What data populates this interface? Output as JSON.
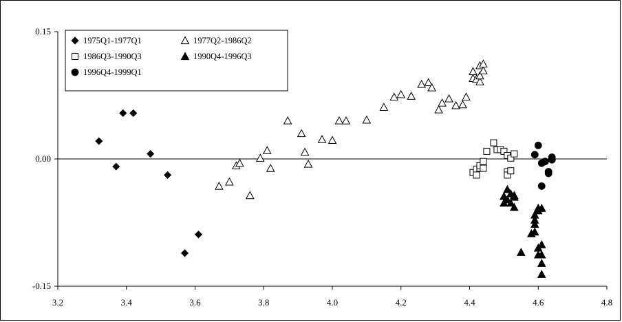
{
  "chart_data": {
    "type": "scatter",
    "xlim": [
      3.2,
      4.8
    ],
    "ylim": [
      -0.15,
      0.15
    ],
    "x_ticks": [
      3.2,
      3.4,
      3.6,
      3.8,
      4.0,
      4.2,
      4.4,
      4.6,
      4.8
    ],
    "x_tick_labels": [
      "3.2",
      "3.4",
      "3.6",
      "3.8",
      "4.0",
      "4.2",
      "4.4",
      "4.6",
      "4.8"
    ],
    "y_ticks": [
      -0.15,
      0.0,
      0.15
    ],
    "y_tick_labels": [
      "-0.15",
      "0.00",
      "0.15"
    ],
    "zero_line": true,
    "legend_position": "top-left",
    "series": [
      {
        "name": "1975Q1-1977Q1",
        "marker": "diamond-filled",
        "points": [
          [
            3.32,
            0.021
          ],
          [
            3.37,
            -0.009
          ],
          [
            3.39,
            0.054
          ],
          [
            3.42,
            0.054
          ],
          [
            3.47,
            0.006
          ],
          [
            3.52,
            -0.019
          ],
          [
            3.57,
            -0.111
          ],
          [
            3.61,
            -0.089
          ]
        ]
      },
      {
        "name": "1977Q2-1986Q2",
        "marker": "triangle-open",
        "points": [
          [
            3.67,
            -0.032
          ],
          [
            3.7,
            -0.027
          ],
          [
            3.72,
            -0.008
          ],
          [
            3.73,
            -0.005
          ],
          [
            3.76,
            -0.043
          ],
          [
            3.79,
            0.001
          ],
          [
            3.81,
            0.01
          ],
          [
            3.82,
            -0.011
          ],
          [
            3.87,
            0.045
          ],
          [
            3.91,
            0.03
          ],
          [
            3.92,
            0.008
          ],
          [
            3.93,
            -0.006
          ],
          [
            3.97,
            0.023
          ],
          [
            4.0,
            0.022
          ],
          [
            4.02,
            0.045
          ],
          [
            4.04,
            0.045
          ],
          [
            4.1,
            0.046
          ],
          [
            4.15,
            0.061
          ],
          [
            4.18,
            0.073
          ],
          [
            4.2,
            0.076
          ],
          [
            4.23,
            0.074
          ],
          [
            4.26,
            0.088
          ],
          [
            4.28,
            0.09
          ],
          [
            4.29,
            0.084
          ],
          [
            4.31,
            0.058
          ],
          [
            4.32,
            0.066
          ],
          [
            4.34,
            0.071
          ],
          [
            4.36,
            0.063
          ],
          [
            4.38,
            0.064
          ],
          [
            4.39,
            0.073
          ],
          [
            4.41,
            0.095
          ],
          [
            4.41,
            0.103
          ],
          [
            4.42,
            0.094
          ],
          [
            4.43,
            0.091
          ],
          [
            4.43,
            0.098
          ],
          [
            4.43,
            0.11
          ],
          [
            4.44,
            0.104
          ],
          [
            4.44,
            0.112
          ]
        ]
      },
      {
        "name": "1986Q3-1990Q3",
        "marker": "square-open",
        "points": [
          [
            4.41,
            -0.016
          ],
          [
            4.42,
            -0.012
          ],
          [
            4.42,
            -0.019
          ],
          [
            4.43,
            -0.011
          ],
          [
            4.43,
            -0.008
          ],
          [
            4.44,
            -0.011
          ],
          [
            4.44,
            -0.003
          ],
          [
            4.45,
            0.009
          ],
          [
            4.47,
            0.019
          ],
          [
            4.48,
            0.011
          ],
          [
            4.49,
            0.011
          ],
          [
            4.5,
            0.009
          ],
          [
            4.51,
            0.004
          ],
          [
            4.51,
            -0.015
          ],
          [
            4.51,
            -0.019
          ],
          [
            4.52,
            -0.014
          ],
          [
            4.52,
            0.001
          ],
          [
            4.53,
            0.006
          ]
        ]
      },
      {
        "name": "1990Q4-1996Q3",
        "marker": "triangle-filled",
        "points": [
          [
            4.5,
            -0.052
          ],
          [
            4.5,
            -0.044
          ],
          [
            4.51,
            -0.048
          ],
          [
            4.51,
            -0.036
          ],
          [
            4.52,
            -0.041
          ],
          [
            4.52,
            -0.052
          ],
          [
            4.53,
            -0.043
          ],
          [
            4.53,
            -0.057
          ],
          [
            4.53,
            -0.045
          ],
          [
            4.55,
            -0.11
          ],
          [
            4.58,
            -0.088
          ],
          [
            4.59,
            -0.086
          ],
          [
            4.59,
            -0.077
          ],
          [
            4.59,
            -0.072
          ],
          [
            4.59,
            -0.066
          ],
          [
            4.6,
            -0.058
          ],
          [
            4.6,
            -0.061
          ],
          [
            4.6,
            -0.113
          ],
          [
            4.6,
            -0.105
          ],
          [
            4.61,
            -0.058
          ],
          [
            4.61,
            -0.113
          ],
          [
            4.61,
            -0.101
          ],
          [
            4.61,
            -0.123
          ],
          [
            4.61,
            -0.136
          ]
        ]
      },
      {
        "name": "1996Q4-1999Q1",
        "marker": "circle-filled",
        "points": [
          [
            4.59,
            0.005
          ],
          [
            4.6,
            0.016
          ],
          [
            4.61,
            -0.005
          ],
          [
            4.61,
            -0.032
          ],
          [
            4.62,
            -0.003
          ],
          [
            4.63,
            -0.017
          ],
          [
            4.63,
            -0.015
          ],
          [
            4.64,
            -0.001
          ],
          [
            4.64,
            0.002
          ]
        ]
      }
    ]
  }
}
